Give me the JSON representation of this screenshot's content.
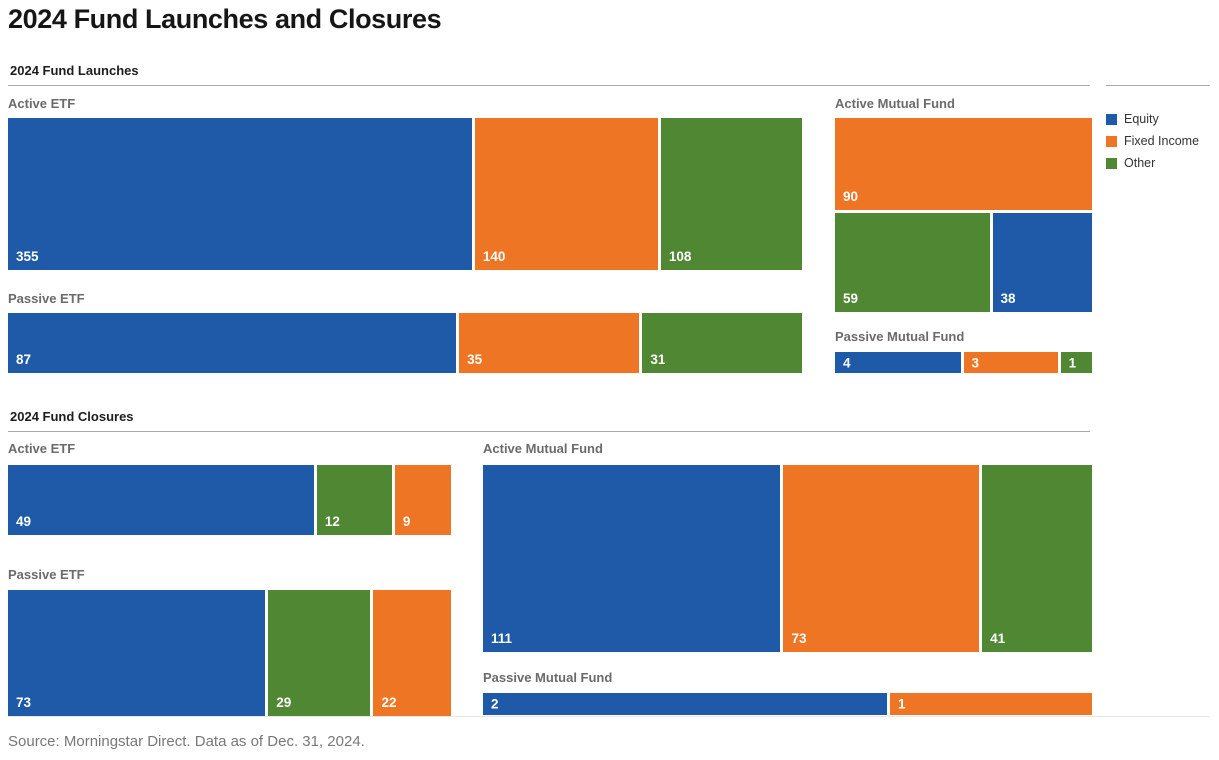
{
  "page": {
    "title": "2024 Fund Launches and Closures",
    "source": "Source: Morningstar Direct. Data as of Dec. 31, 2024."
  },
  "category_colors": {
    "Equity": "#1e5aa8",
    "Fixed Income": "#ee7523",
    "Other": "#4f8733"
  },
  "legend": [
    {
      "label": "Equity"
    },
    {
      "label": "Fixed Income"
    },
    {
      "label": "Other"
    }
  ],
  "chart_data": [
    {
      "type": "bar",
      "title": "2024 Fund Launches",
      "legend_position": "top-right",
      "groups": [
        {
          "label": "Active ETF",
          "segments": [
            {
              "category": "Equity",
              "value": 355
            },
            {
              "category": "Fixed Income",
              "value": 140
            },
            {
              "category": "Other",
              "value": 108
            }
          ]
        },
        {
          "label": "Active Mutual Fund",
          "layout": "treemap",
          "segments": [
            {
              "category": "Fixed Income",
              "value": 90
            },
            {
              "category": "Other",
              "value": 59
            },
            {
              "category": "Equity",
              "value": 38
            }
          ]
        },
        {
          "label": "Passive ETF",
          "segments": [
            {
              "category": "Equity",
              "value": 87
            },
            {
              "category": "Fixed Income",
              "value": 35
            },
            {
              "category": "Other",
              "value": 31
            }
          ]
        },
        {
          "label": "Passive Mutual Fund",
          "segments": [
            {
              "category": "Equity",
              "value": 4
            },
            {
              "category": "Fixed Income",
              "value": 3
            },
            {
              "category": "Other",
              "value": 1
            }
          ]
        }
      ]
    },
    {
      "type": "bar",
      "title": "2024 Fund Closures",
      "groups": [
        {
          "label": "Active ETF",
          "segments": [
            {
              "category": "Equity",
              "value": 49
            },
            {
              "category": "Other",
              "value": 12
            },
            {
              "category": "Fixed Income",
              "value": 9
            }
          ]
        },
        {
          "label": "Active Mutual Fund",
          "segments": [
            {
              "category": "Equity",
              "value": 111
            },
            {
              "category": "Fixed Income",
              "value": 73
            },
            {
              "category": "Other",
              "value": 41
            }
          ]
        },
        {
          "label": "Passive ETF",
          "segments": [
            {
              "category": "Equity",
              "value": 73
            },
            {
              "category": "Other",
              "value": 29
            },
            {
              "category": "Fixed Income",
              "value": 22
            }
          ]
        },
        {
          "label": "Passive Mutual Fund",
          "segments": [
            {
              "category": "Equity",
              "value": 2
            },
            {
              "category": "Fixed Income",
              "value": 1
            }
          ]
        }
      ]
    }
  ]
}
